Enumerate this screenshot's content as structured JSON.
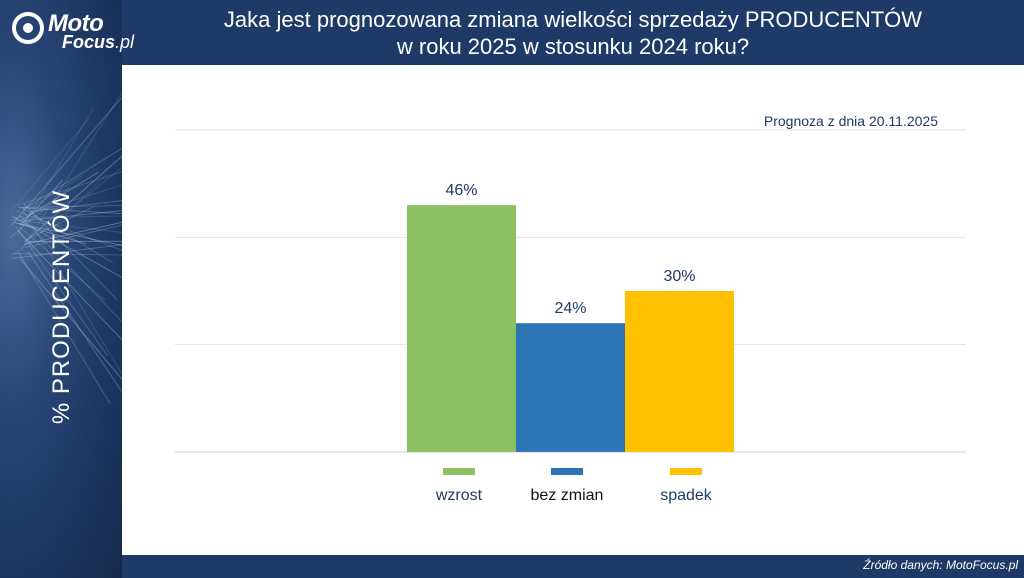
{
  "header": {
    "title_line1": "Jaka jest prognozowana zmiana wielkości sprzedaży PRODUCENTÓW",
    "title_line2": "w roku 2025 w stosunku 2024 roku?"
  },
  "logo": {
    "moto": "Moto",
    "focus": "Focus",
    "tld": ".pl"
  },
  "y_axis_label": "% PRODUCENTÓW",
  "forecast_note": "Prognoza z dnia 20.11.2025",
  "footer": {
    "source": "Źródło danych: MotoFocus.pl"
  },
  "chart_data": {
    "type": "bar",
    "title": "Jaka jest prognozowana zmiana wielkości sprzedaży PRODUCENTÓW w roku 2025 w stosunku 2024 roku?",
    "ylabel": "% PRODUCENTÓW",
    "ylim": [
      0,
      60
    ],
    "grid": true,
    "legend": "bottom",
    "series": [
      {
        "name": "wzrost",
        "values": [
          46
        ],
        "label": "46%",
        "color": "#8cc063"
      },
      {
        "name": "bez zmian",
        "values": [
          24
        ],
        "label": "24%",
        "color": "#2e75b6"
      },
      {
        "name": "spadek",
        "values": [
          30
        ],
        "label": "30%",
        "color": "#ffc000"
      }
    ]
  }
}
